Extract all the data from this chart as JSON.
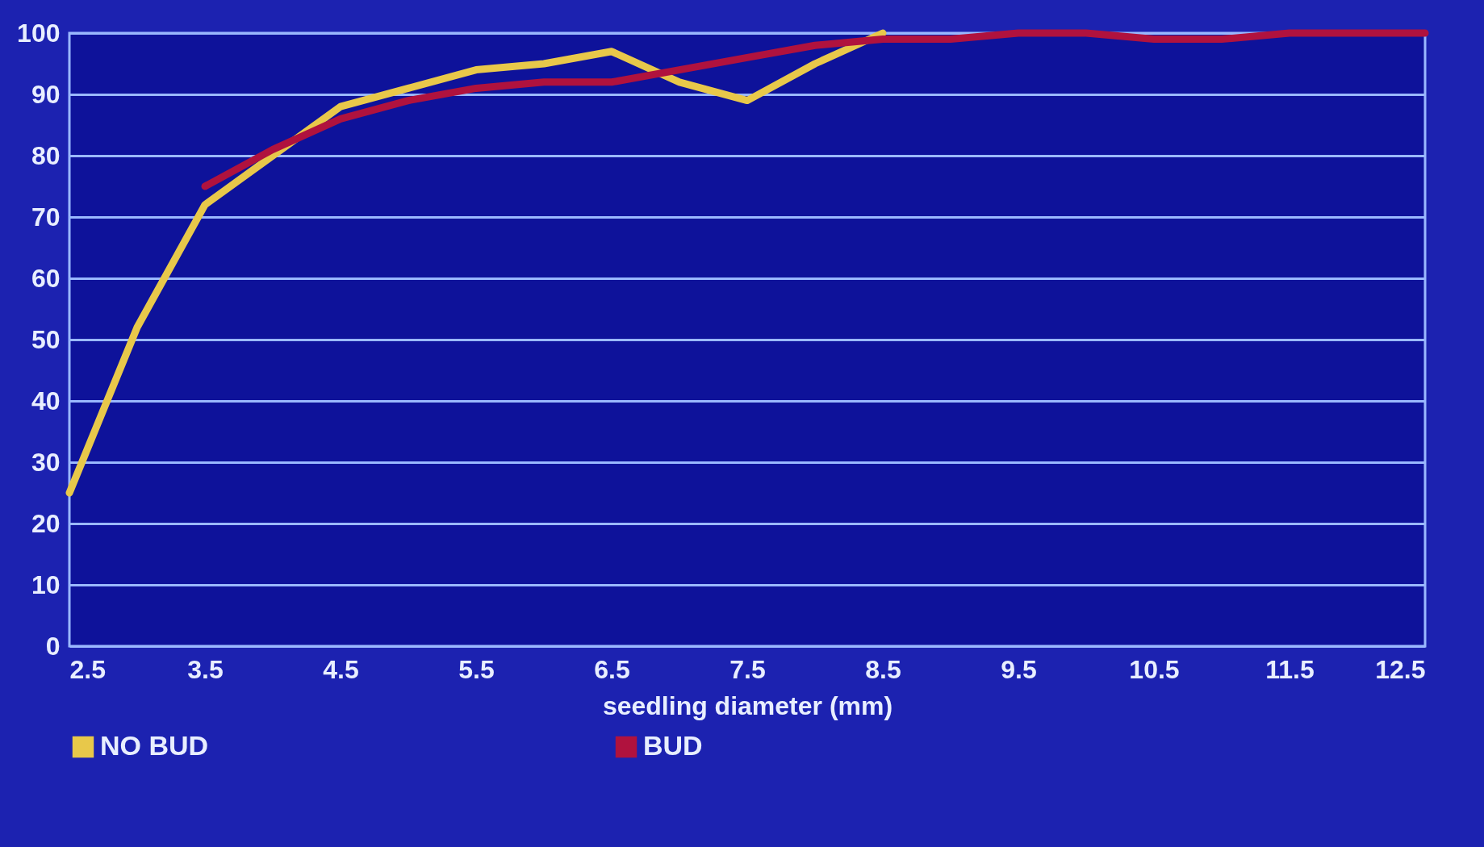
{
  "chart_data": {
    "type": "line",
    "xlabel": "seedling diameter (mm)",
    "xlim": [
      2.5,
      12.5
    ],
    "xticks": [
      2.5,
      3.5,
      4.5,
      5.5,
      6.5,
      7.5,
      8.5,
      9.5,
      10.5,
      11.5,
      12.5
    ],
    "ylim": [
      0,
      100
    ],
    "yticks": [
      0,
      10,
      20,
      30,
      40,
      50,
      60,
      70,
      80,
      90,
      100
    ],
    "grid": "y",
    "legend": "bottom",
    "marker": "none",
    "line_style": "solid",
    "series": [
      {
        "name": "NO BUD",
        "color": "#e8c84a",
        "x": [
          2.5,
          3.0,
          3.5,
          4.0,
          4.5,
          5.0,
          5.5,
          6.0,
          6.5,
          7.0,
          7.5,
          8.0,
          8.5
        ],
        "values": [
          25,
          52,
          72,
          80,
          88,
          91,
          94,
          95,
          97,
          92,
          89,
          95,
          100
        ]
      },
      {
        "name": "BUD",
        "color": "#b0123e",
        "x": [
          3.5,
          4.0,
          4.5,
          5.0,
          5.5,
          6.0,
          6.5,
          7.0,
          7.5,
          8.0,
          8.5,
          9.0,
          9.5,
          10.0,
          10.5,
          11.0,
          11.5,
          12.0,
          12.5
        ],
        "values": [
          75,
          81,
          86,
          89,
          91,
          92,
          92,
          94,
          96,
          98,
          99,
          99,
          100,
          100,
          99,
          99,
          100,
          100,
          100
        ]
      }
    ]
  }
}
